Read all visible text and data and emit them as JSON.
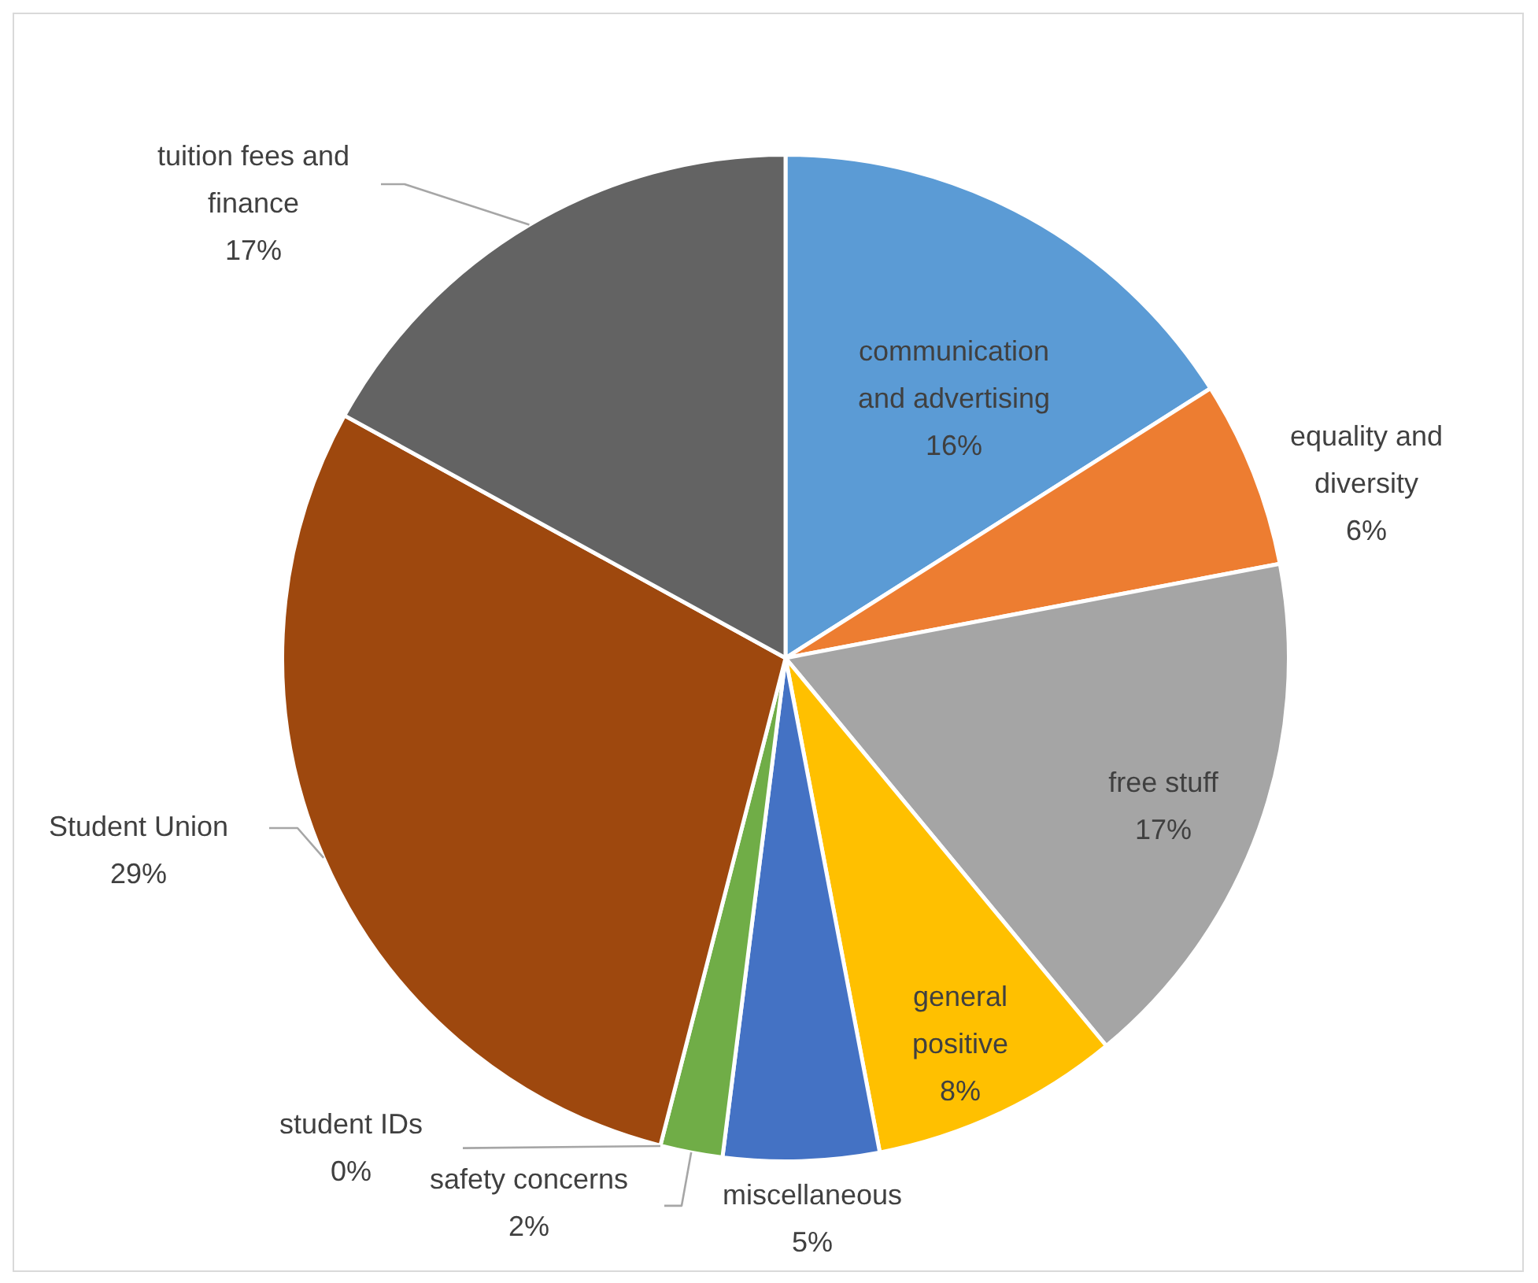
{
  "chart_data": {
    "type": "pie",
    "categories": [
      "communication and advertising",
      "equality and diversity",
      "free stuff",
      "general positive",
      "miscellaneous",
      "safety concerns",
      "student IDs",
      "Student Union",
      "tuition fees and finance"
    ],
    "values": [
      16,
      6,
      17,
      8,
      5,
      2,
      0,
      29,
      17
    ],
    "value_labels": [
      "16%",
      "6%",
      "17%",
      "8%",
      "5%",
      "2%",
      "0%",
      "29%",
      "17%"
    ],
    "colors": [
      "#5b9bd5",
      "#ed7d31",
      "#a5a5a5",
      "#ffc000",
      "#4472c4",
      "#70ad47",
      "#255e91",
      "#9e480e",
      "#636363"
    ],
    "legend": false
  }
}
